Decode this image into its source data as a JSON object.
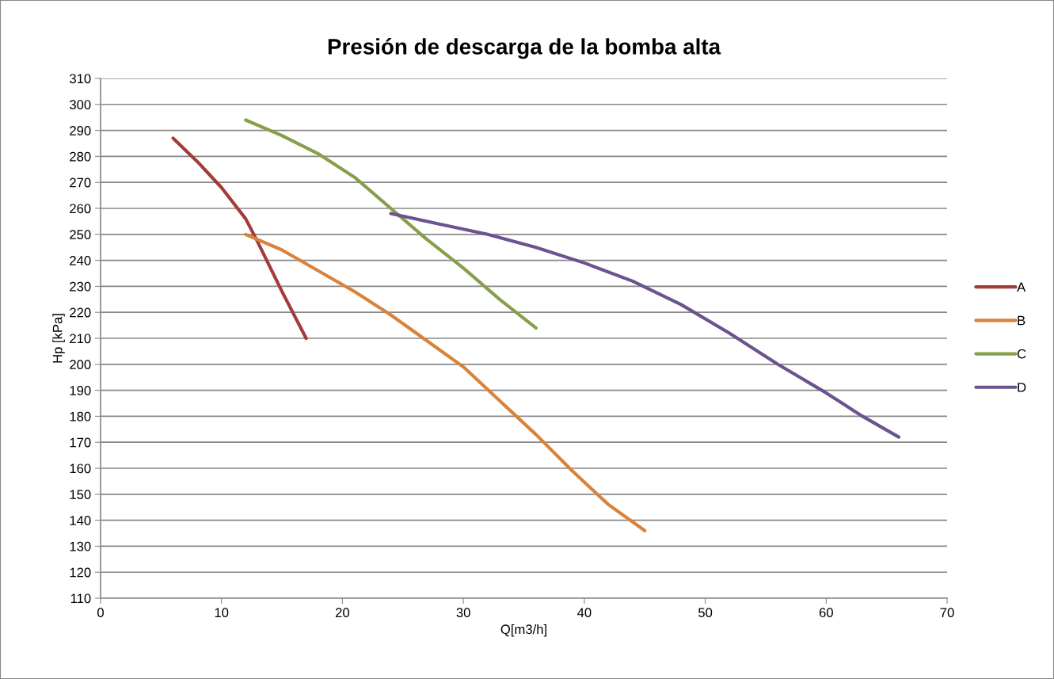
{
  "chart_data": {
    "type": "line",
    "title": "Presión de descarga de la bomba alta",
    "xlabel": "Q[m3/h]",
    "ylabel": "Hp [kPa]",
    "xlim": [
      0,
      70
    ],
    "xticks": [
      0,
      10,
      20,
      30,
      40,
      50,
      60,
      70
    ],
    "ylim": [
      110,
      310
    ],
    "yticks": [
      110,
      120,
      130,
      140,
      150,
      160,
      170,
      180,
      190,
      200,
      210,
      220,
      230,
      240,
      250,
      260,
      270,
      280,
      290,
      300,
      310
    ],
    "grid": "y",
    "legend": "right",
    "marker": "none",
    "line_style": "solid",
    "series": [
      {
        "name": "A",
        "color": "#a33b3a",
        "x": [
          6,
          8,
          10,
          12,
          13,
          15,
          17
        ],
        "values": [
          287,
          278,
          268,
          256,
          247,
          228,
          210
        ]
      },
      {
        "name": "B",
        "color": "#d9823a",
        "x": [
          12,
          15,
          18,
          21,
          24,
          27,
          30,
          33,
          36,
          39,
          42,
          45
        ],
        "values": [
          250,
          244,
          236,
          228,
          219,
          209,
          199,
          186,
          173,
          159,
          146,
          136
        ]
      },
      {
        "name": "C",
        "color": "#86a04a",
        "x": [
          12,
          15,
          18,
          21,
          24,
          27,
          30,
          33,
          36
        ],
        "values": [
          294,
          288,
          281,
          272,
          260,
          248,
          237,
          225,
          214
        ]
      },
      {
        "name": "D",
        "color": "#6b538f",
        "x": [
          24,
          28,
          32,
          36,
          40,
          44,
          48,
          52,
          56,
          60,
          63,
          66
        ],
        "values": [
          258,
          254,
          250,
          245,
          239,
          232,
          223,
          212,
          200,
          189,
          180,
          172
        ]
      }
    ]
  }
}
